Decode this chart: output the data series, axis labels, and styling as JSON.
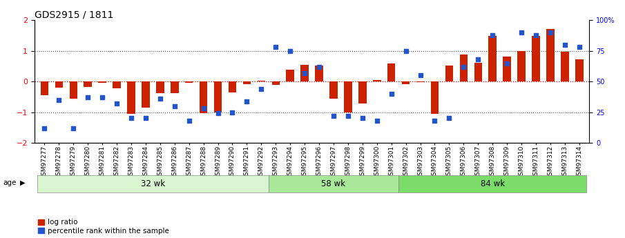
{
  "title": "GDS2915 / 1811",
  "samples": [
    "GSM97277",
    "GSM97278",
    "GSM97279",
    "GSM97280",
    "GSM97281",
    "GSM97282",
    "GSM97283",
    "GSM97284",
    "GSM97285",
    "GSM97286",
    "GSM97287",
    "GSM97288",
    "GSM97289",
    "GSM97290",
    "GSM97291",
    "GSM97292",
    "GSM97293",
    "GSM97294",
    "GSM97295",
    "GSM97296",
    "GSM97297",
    "GSM97298",
    "GSM97299",
    "GSM97300",
    "GSM97301",
    "GSM97302",
    "GSM97303",
    "GSM97304",
    "GSM97305",
    "GSM97306",
    "GSM97307",
    "GSM97308",
    "GSM97309",
    "GSM97310",
    "GSM97311",
    "GSM97312",
    "GSM97313",
    "GSM97314"
  ],
  "log_ratio": [
    -0.45,
    -0.2,
    -0.55,
    -0.18,
    -0.05,
    -0.22,
    -1.05,
    -0.85,
    -0.38,
    -0.38,
    -0.05,
    -1.03,
    -1.0,
    -0.35,
    -0.08,
    0.03,
    -0.1,
    0.38,
    0.55,
    0.52,
    -0.55,
    -1.0,
    -0.72,
    0.05,
    0.58,
    -0.08,
    -0.03,
    -1.05,
    0.52,
    0.88,
    0.62,
    1.48,
    0.82,
    1.0,
    1.48,
    1.72,
    0.98,
    0.72
  ],
  "percentile": [
    12,
    35,
    12,
    37,
    37,
    32,
    20,
    20,
    36,
    30,
    18,
    28,
    24,
    25,
    34,
    44,
    78,
    75,
    57,
    62,
    22,
    22,
    20,
    18,
    40,
    75,
    55,
    18,
    20,
    62,
    68,
    88,
    65,
    90,
    88,
    90,
    80,
    78
  ],
  "groups": [
    {
      "label": "32 wk",
      "start": 0,
      "end": 16,
      "color": "#d8f5d0"
    },
    {
      "label": "58 wk",
      "start": 16,
      "end": 25,
      "color": "#a8e898"
    },
    {
      "label": "84 wk",
      "start": 25,
      "end": 38,
      "color": "#7bdc6a"
    }
  ],
  "ylim": [
    -2,
    2
  ],
  "right_ylim": [
    0,
    100
  ],
  "bar_color": "#cc2200",
  "dot_color": "#2255cc",
  "dotted_line_color": "#555555",
  "zero_line_color": "#cc0000",
  "bg_color": "#ffffff",
  "title_fontsize": 10,
  "tick_fontsize": 6.5,
  "legend_red_label": "log ratio",
  "legend_blue_label": "percentile rank within the sample"
}
